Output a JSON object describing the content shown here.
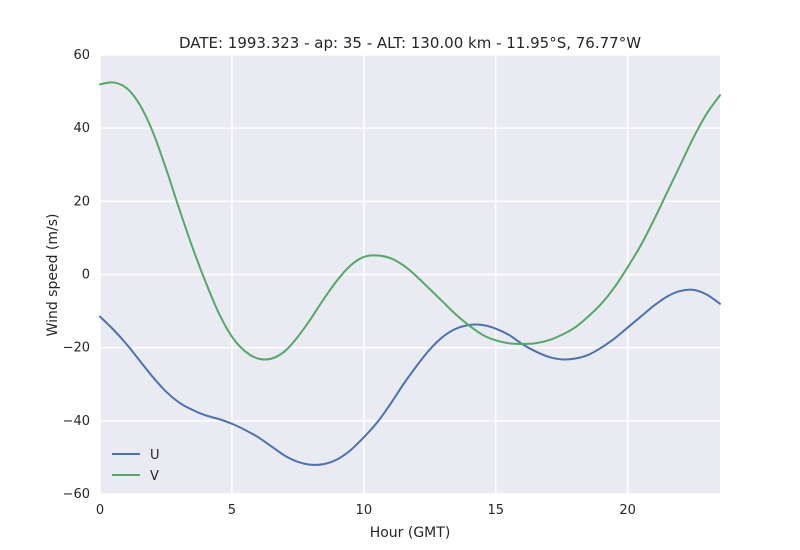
{
  "chart_data": {
    "type": "line",
    "title": "DATE: 1993.323 - ap:  35 - ALT:  130.00 km -  11.95°S,  76.77°W",
    "xlabel": "Hour (GMT)",
    "ylabel": "Wind speed (m/s)",
    "xlim": [
      0,
      23.5
    ],
    "ylim": [
      -60,
      60
    ],
    "xticks": [
      0,
      5,
      10,
      15,
      20
    ],
    "yticks": [
      -60,
      -40,
      -20,
      0,
      20,
      40,
      60
    ],
    "ytick_labels": [
      "−60",
      "−40",
      "−20",
      "0",
      "20",
      "40",
      "60"
    ],
    "grid": true,
    "legend_position": "lower-left",
    "x": [
      0,
      0.5,
      1,
      1.5,
      2,
      2.5,
      3,
      3.5,
      4,
      4.5,
      5,
      5.5,
      6,
      6.5,
      7,
      7.5,
      8,
      8.5,
      9,
      9.5,
      10,
      10.5,
      11,
      11.5,
      12,
      12.5,
      13,
      13.5,
      14,
      14.5,
      15,
      15.5,
      16,
      16.5,
      17,
      17.5,
      18,
      18.5,
      19,
      19.5,
      20,
      20.5,
      21,
      21.5,
      22,
      22.5,
      23,
      23.5
    ],
    "series": [
      {
        "name": "U",
        "color": "#4c72b0",
        "values": [
          -11.5,
          -15.0,
          -19.0,
          -23.5,
          -28.0,
          -32.0,
          -35.0,
          -37.0,
          -38.5,
          -39.5,
          -40.8,
          -42.5,
          -44.5,
          -47.0,
          -49.5,
          -51.2,
          -52.0,
          -51.8,
          -50.5,
          -48.0,
          -44.5,
          -40.5,
          -35.5,
          -30.0,
          -25.0,
          -20.5,
          -17.0,
          -14.8,
          -13.8,
          -13.8,
          -14.8,
          -16.5,
          -19.0,
          -21.0,
          -22.5,
          -23.2,
          -23.0,
          -22.0,
          -20.0,
          -17.5,
          -14.5,
          -11.5,
          -8.5,
          -6.0,
          -4.5,
          -4.2,
          -5.5,
          -8.0
        ]
      },
      {
        "name": "V",
        "color": "#55a868",
        "values": [
          52.0,
          52.5,
          51.0,
          46.5,
          39.0,
          29.0,
          18.0,
          7.5,
          -2.0,
          -10.5,
          -17.0,
          -21.0,
          -23.0,
          -23.0,
          -21.0,
          -17.0,
          -12.0,
          -6.5,
          -1.5,
          2.5,
          4.8,
          5.2,
          4.5,
          2.5,
          -0.5,
          -4.0,
          -7.5,
          -11.0,
          -14.0,
          -16.5,
          -18.0,
          -18.8,
          -19.0,
          -18.8,
          -18.0,
          -16.5,
          -14.5,
          -11.5,
          -8.0,
          -3.5,
          2.0,
          8.0,
          15.0,
          22.5,
          30.0,
          37.5,
          44.0,
          49.0
        ]
      }
    ]
  }
}
